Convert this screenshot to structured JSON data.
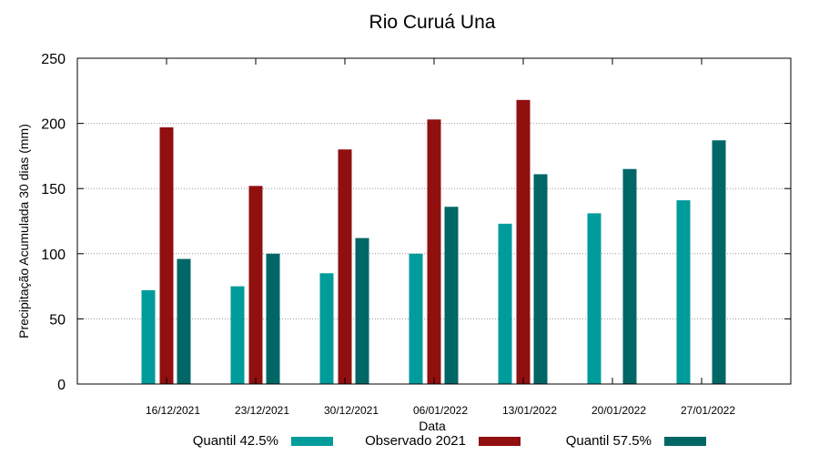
{
  "chart_data": {
    "type": "bar",
    "title": "Rio Curuá Una",
    "xlabel": "Data",
    "ylabel": "Precipitação Acumulada 30 dias (mm)",
    "ylim": [
      0,
      250
    ],
    "yticks": [
      0,
      50,
      100,
      150,
      200,
      250
    ],
    "grid": true,
    "legend_position": "bottom",
    "categories": [
      "16/12/2021",
      "23/12/2021",
      "30/12/2021",
      "06/01/2022",
      "13/01/2022",
      "20/01/2022",
      "27/01/2022"
    ],
    "series": [
      {
        "name": "Quantil 42.5%",
        "color": "#009b9b",
        "values": [
          72,
          75,
          85,
          100,
          123,
          131,
          141
        ]
      },
      {
        "name": "Observado 2021",
        "color": "#900f0f",
        "values": [
          197,
          152,
          180,
          203,
          218,
          null,
          null
        ]
      },
      {
        "name": "Quantil 57.5%",
        "color": "#006666",
        "values": [
          96,
          100,
          112,
          136,
          161,
          165,
          187
        ]
      }
    ]
  }
}
